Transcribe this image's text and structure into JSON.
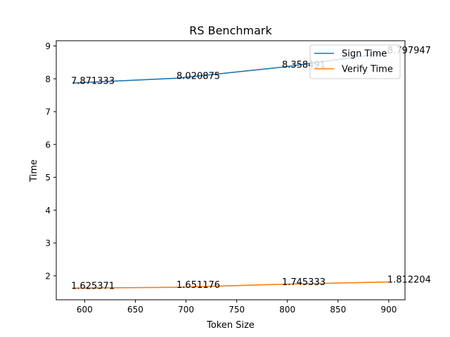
{
  "chart_data": {
    "type": "line",
    "title": "RS Benchmark",
    "xlabel": "Token Size",
    "ylabel": "Time",
    "x": [
      588,
      692,
      796,
      900
    ],
    "series": [
      {
        "name": "Sign Time",
        "color": "#1f77b4",
        "values": [
          7.871333,
          8.020875,
          8.358491,
          8.797947
        ],
        "labels": [
          "7.871333",
          "8.020875",
          "8.358491",
          "8.797947"
        ]
      },
      {
        "name": "Verify Time",
        "color": "#ff7f0e",
        "values": [
          1.625371,
          1.651176,
          1.745333,
          1.812204
        ],
        "labels": [
          "1.625371",
          "1.651176",
          "1.745333",
          "1.812204"
        ]
      }
    ],
    "xlim": [
      572,
      916
    ],
    "ylim": [
      1.27,
      9.16
    ],
    "xticks": [
      600,
      650,
      700,
      750,
      800,
      850,
      900
    ],
    "yticks": [
      2,
      3,
      4,
      5,
      6,
      7,
      8,
      9
    ],
    "grid": false,
    "legend": "top-right"
  }
}
